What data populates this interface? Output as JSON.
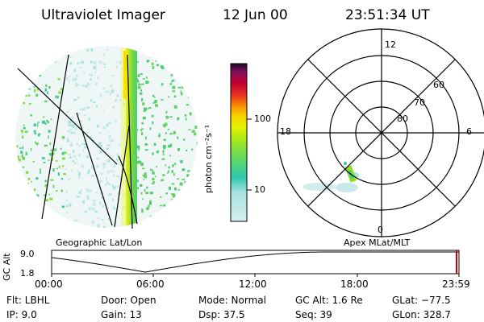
{
  "header": {
    "title": "Ultraviolet Imager",
    "date": "12 Jun 00",
    "time": "23:51:34 UT"
  },
  "colorbar": {
    "unit_label": "photon cm⁻²s⁻¹",
    "ticks": [
      "100",
      "10"
    ]
  },
  "polar_plot": {
    "mlt_labels": [
      "12",
      "18",
      "6",
      "0"
    ],
    "lat_labels": [
      "60",
      "70",
      "80"
    ]
  },
  "captions": {
    "left": "Geographic Lat/Lon",
    "right": "Apex MLat/MLT"
  },
  "altitude_strip": {
    "axis_label": "GC Alt",
    "y_ticks": [
      "9.0",
      "1.8"
    ],
    "x_ticks": [
      "00:00",
      "06:00",
      "12:00",
      "18:00",
      "23:59"
    ],
    "current_time_fraction": 0.994
  },
  "footer": {
    "flt": "Flt: LBHL",
    "ip": "IP:  9.0",
    "door": "Door: Open",
    "gain": "Gain: 13",
    "mode": "Mode: Normal",
    "dsp": "Dsp:    37.5",
    "gc_alt": "GC Alt: 1.6 Re",
    "seq": "Seq: 39",
    "glat": "GLat: −77.5",
    "glon": "GLon: 328.7"
  },
  "colors": {
    "scale_low": "#d0ecec",
    "scale_mid": "#38c8a0",
    "scale_green": "#90e020",
    "scale_yellow": "#f8e000",
    "scale_orange": "#f89000",
    "scale_red": "#d00020",
    "scale_top": "#301040",
    "marker": "#c00000"
  }
}
